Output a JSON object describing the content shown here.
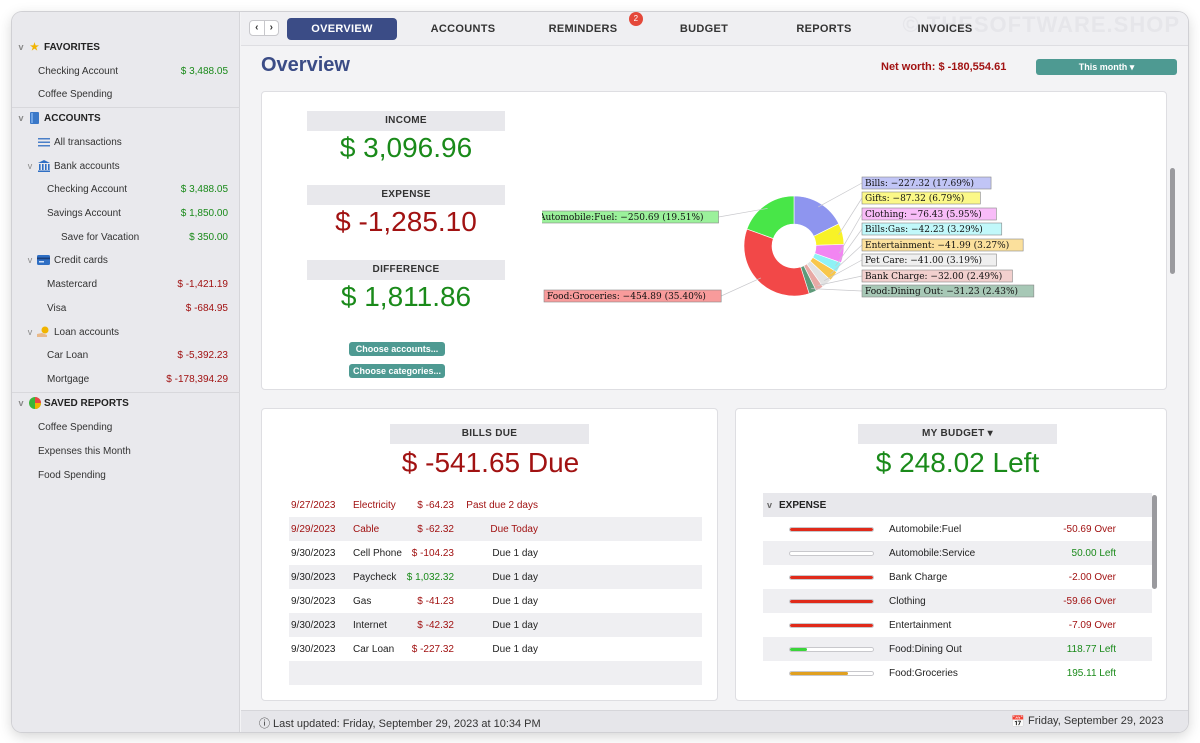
{
  "watermark": "© THESOFTWARE.SHOP",
  "sidebar": {
    "favorites": {
      "title": "FAVORITES",
      "items": [
        {
          "label": "Checking Account",
          "amount": "$ 3,488.05"
        },
        {
          "label": "Coffee Spending",
          "amount": ""
        }
      ]
    },
    "accounts": {
      "title": "ACCOUNTS",
      "all": "All transactions",
      "bank": {
        "title": "Bank accounts",
        "items": [
          {
            "label": "Checking Account",
            "amount": "$ 3,488.05"
          },
          {
            "label": "Savings Account",
            "amount": "$ 1,850.00"
          },
          {
            "label": "Save for Vacation",
            "amount": "$ 350.00"
          }
        ]
      },
      "credit": {
        "title": "Credit cards",
        "items": [
          {
            "label": "Mastercard",
            "amount": "$ -1,421.19"
          },
          {
            "label": "Visa",
            "amount": "$ -684.95"
          }
        ]
      },
      "loan": {
        "title": "Loan accounts",
        "items": [
          {
            "label": "Car Loan",
            "amount": "$ -5,392.23"
          },
          {
            "label": "Mortgage",
            "amount": "$ -178,394.29"
          }
        ]
      }
    },
    "saved": {
      "title": "SAVED REPORTS",
      "items": [
        "Coffee Spending",
        "Expenses this Month",
        "Food Spending"
      ]
    }
  },
  "tabs": [
    "OVERVIEW",
    "ACCOUNTS",
    "REMINDERS",
    "BUDGET",
    "REPORTS",
    "INVOICES"
  ],
  "reminders_badge": "2",
  "overview": {
    "title": "Overview",
    "net_worth": "Net worth: $ -180,554.61",
    "period": "This month ▾",
    "income_label": "INCOME",
    "income": "$ 3,096.96",
    "expense_label": "EXPENSE",
    "expense": "$ -1,285.10",
    "difference_label": "DIFFERENCE",
    "difference": "$ 1,811.86",
    "choose_accounts": "Choose accounts...",
    "choose_categories": "Choose categories..."
  },
  "chart_data": {
    "type": "pie",
    "donut": true,
    "slices": [
      {
        "label": "Bills: −227.32 (17.69%)",
        "value": 227.32,
        "percent": 17.69,
        "color": "#8e95ef"
      },
      {
        "label": "Gifts: −87.32 (6.79%)",
        "value": 87.32,
        "percent": 6.79,
        "color": "#f8f227"
      },
      {
        "label": "Clothing: −76.43 (5.95%)",
        "value": 76.43,
        "percent": 5.95,
        "color": "#f285f2"
      },
      {
        "label": "Bills:Gas: −42.23 (3.29%)",
        "value": 42.23,
        "percent": 3.29,
        "color": "#8ef2f5"
      },
      {
        "label": "Entertainment: −41.99 (3.27%)",
        "value": 41.99,
        "percent": 3.27,
        "color": "#f8c74a"
      },
      {
        "label": "Pet Care: −41.00 (3.19%)",
        "value": 41.0,
        "percent": 3.19,
        "color": "#e2e2e2"
      },
      {
        "label": "Bank Charge: −32.00 (2.49%)",
        "value": 32.0,
        "percent": 2.49,
        "color": "#e7a9a5"
      },
      {
        "label": "Food:Dining Out: −31.23 (2.43%)",
        "value": 31.23,
        "percent": 2.43,
        "color": "#5e9a7a"
      },
      {
        "label": "Food:Groceries: −454.89 (35.40%)",
        "value": 454.89,
        "percent": 35.4,
        "color": "#f24848"
      },
      {
        "label": "Automobile:Fuel: −250.69 (19.51%)",
        "value": 250.69,
        "percent": 19.51,
        "color": "#48e648"
      }
    ]
  },
  "bills": {
    "title": "BILLS DUE",
    "total": "$ -541.65 Due",
    "rows": [
      {
        "date": "9/27/2023",
        "payee": "Electricity",
        "amount": "$ -64.23",
        "status": "Past due 2 days",
        "kind": "overdue"
      },
      {
        "date": "9/29/2023",
        "payee": "Cable",
        "amount": "$ -62.32",
        "status": "Due Today",
        "kind": "overdue"
      },
      {
        "date": "9/30/2023",
        "payee": "Cell Phone",
        "amount": "$ -104.23",
        "status": "Due 1 day",
        "kind": "normal"
      },
      {
        "date": "9/30/2023",
        "payee": "Paycheck",
        "amount": "$ 1,032.32",
        "status": "Due 1 day",
        "kind": "income"
      },
      {
        "date": "9/30/2023",
        "payee": "Gas",
        "amount": "$ -41.23",
        "status": "Due 1 day",
        "kind": "normal"
      },
      {
        "date": "9/30/2023",
        "payee": "Internet",
        "amount": "$ -42.32",
        "status": "Due 1 day",
        "kind": "normal"
      },
      {
        "date": "9/30/2023",
        "payee": "Car Loan",
        "amount": "$ -227.32",
        "status": "Due 1 day",
        "kind": "normal"
      }
    ]
  },
  "budget": {
    "title": "MY BUDGET ▾",
    "left": "$ 248.02 Left",
    "section": "EXPENSE",
    "rows": [
      {
        "category": "Automobile:Fuel",
        "status": "-50.69 Over",
        "over": true,
        "fill": 1.0,
        "color": "#e02a1a"
      },
      {
        "category": "Automobile:Service",
        "status": "50.00 Left",
        "over": false,
        "fill": 0.0,
        "color": "#e02a1a"
      },
      {
        "category": "Bank Charge",
        "status": "-2.00 Over",
        "over": true,
        "fill": 1.0,
        "color": "#e02a1a"
      },
      {
        "category": "Clothing",
        "status": "-59.66 Over",
        "over": true,
        "fill": 1.0,
        "color": "#e02a1a"
      },
      {
        "category": "Entertainment",
        "status": "-7.09 Over",
        "over": true,
        "fill": 1.0,
        "color": "#e02a1a"
      },
      {
        "category": "Food:Dining Out",
        "status": "118.77 Left",
        "over": false,
        "fill": 0.2,
        "color": "#3ad43a"
      },
      {
        "category": "Food:Groceries",
        "status": "195.11 Left",
        "over": false,
        "fill": 0.7,
        "color": "#e0a020"
      }
    ]
  },
  "status": {
    "updated": "ⓘ Last updated: Friday, September 29, 2023 at 10:34 PM",
    "date": "Friday, September 29, 2023"
  }
}
